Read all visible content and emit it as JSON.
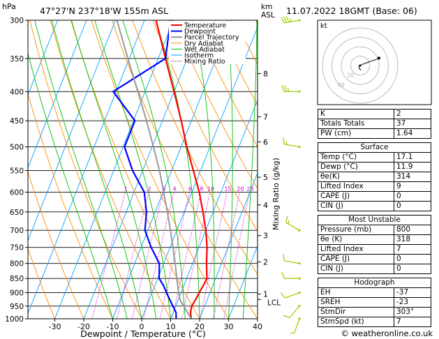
{
  "header": {
    "y_unit": "hPa",
    "location": "47°27'N  237°18'W  155m  ASL",
    "km_unit": "km",
    "asl_label": "ASL",
    "datetime": "11.07.2022  18GMT  (Base: 06)"
  },
  "footer": {
    "copyright": "© weatheronline.co.uk"
  },
  "colors": {
    "temperature": "#ff0000",
    "dewpoint": "#0000ff",
    "parcel": "#999999",
    "dry_adiabat": "#ff8c00",
    "wet_adiabat": "#00c000",
    "isotherm": "#00a0ff",
    "mixing_ratio": "#cc00cc",
    "wind": "#99cc00"
  },
  "chart_data": {
    "type": "line",
    "xlabel": "Dewpoint / Temperature (°C)",
    "ylabel": "hPa",
    "xlim": [
      -35,
      40
    ],
    "ylim": [
      1000,
      300
    ],
    "x_ticks": [
      -30,
      -20,
      -10,
      0,
      10,
      20,
      30,
      40
    ],
    "pressure_ticks": [
      300,
      350,
      400,
      450,
      500,
      550,
      600,
      650,
      700,
      750,
      800,
      850,
      900,
      950,
      1000
    ],
    "km_ticks": [
      {
        "p": 372,
        "label": "8"
      },
      {
        "p": 443,
        "label": "7"
      },
      {
        "p": 490,
        "label": "6"
      },
      {
        "p": 565,
        "label": "5"
      },
      {
        "p": 632,
        "label": "4"
      },
      {
        "p": 715,
        "label": "3"
      },
      {
        "p": 795,
        "label": "2"
      },
      {
        "p": 905,
        "label": "1"
      }
    ],
    "lcl": {
      "label": "LCL",
      "p": 925
    },
    "mixing_ratio_axis_label": "Mixing Ratio (g/kg)",
    "mixing_ratio_labels": [
      "1",
      "2",
      "3",
      "4",
      "6",
      "8",
      "10",
      "15",
      "20",
      "25"
    ],
    "mixing_ratios": [
      1,
      2,
      3,
      4,
      6,
      8,
      10,
      15,
      20,
      25
    ],
    "legend": {
      "placement": "top-left",
      "entries": [
        "Temperature",
        "Dewpoint",
        "Parcel Trajectory",
        "Dry Adiabat",
        "Wet Adiabat",
        "Isotherm",
        "Mixing Ratio"
      ]
    },
    "series": [
      {
        "name": "Temperature",
        "p": [
          1000,
          975,
          950,
          925,
          900,
          875,
          850,
          800,
          750,
          700,
          650,
          600,
          550,
          500,
          450,
          400,
          350,
          300
        ],
        "t": [
          17.1,
          16.0,
          15.5,
          16.0,
          16.3,
          16.7,
          17.0,
          14.8,
          12.8,
          10.0,
          6.5,
          2.5,
          -2.5,
          -8.0,
          -13.5,
          -20.0,
          -27.5,
          -36.0
        ]
      },
      {
        "name": "Dewpoint",
        "p": [
          1000,
          975,
          950,
          925,
          900,
          875,
          850,
          800,
          750,
          700,
          650,
          600,
          550,
          500,
          450,
          400,
          350,
          300
        ],
        "t": [
          11.9,
          11.0,
          9.0,
          7.0,
          5.0,
          3.0,
          0.5,
          -1.5,
          -6.5,
          -11.0,
          -13.0,
          -16.5,
          -23.5,
          -29.5,
          -29.5,
          -41.0,
          -27.5,
          -31.0
        ]
      },
      {
        "name": "Parcel Trajectory",
        "p": [
          1000,
          925,
          900,
          850,
          800,
          750,
          700,
          650,
          600,
          550,
          500,
          450,
          400,
          350,
          300
        ],
        "t": [
          17.1,
          10.5,
          9.2,
          6.6,
          4.0,
          1.0,
          -2.2,
          -5.8,
          -9.8,
          -14.2,
          -19.5,
          -25.5,
          -32.5,
          -40.5,
          -49.5
        ]
      }
    ],
    "wind_barbs": [
      {
        "p": 1000,
        "dir": 200,
        "kt": 5
      },
      {
        "p": 950,
        "dir": 220,
        "kt": 10
      },
      {
        "p": 900,
        "dir": 250,
        "kt": 10
      },
      {
        "p": 850,
        "dir": 270,
        "kt": 10
      },
      {
        "p": 800,
        "dir": 280,
        "kt": 10
      },
      {
        "p": 700,
        "dir": 300,
        "kt": 15
      },
      {
        "p": 500,
        "dir": 280,
        "kt": 15
      },
      {
        "p": 400,
        "dir": 270,
        "kt": 25
      },
      {
        "p": 300,
        "dir": 260,
        "kt": 35
      }
    ],
    "hodograph": {
      "unit": "kt",
      "ring_labels": [
        "20",
        "40"
      ],
      "u": [
        1,
        -1,
        -1,
        2,
        4,
        7,
        12,
        16,
        20
      ],
      "v": [
        -5,
        -3,
        0,
        1,
        2,
        3,
        5,
        6,
        8
      ]
    }
  },
  "indices": {
    "basic": [
      {
        "label": "K",
        "value": "2"
      },
      {
        "label": "Totals Totals",
        "value": "37"
      },
      {
        "label": "PW (cm)",
        "value": "1.64"
      }
    ],
    "surface": {
      "title": "Surface",
      "rows": [
        {
          "label": "Temp (°C)",
          "value": "17.1"
        },
        {
          "label": "Dewp (°C)",
          "value": "11.9"
        },
        {
          "label": "θe(K)",
          "value": "314"
        },
        {
          "label": "Lifted Index",
          "value": "9"
        },
        {
          "label": "CAPE (J)",
          "value": "0"
        },
        {
          "label": "CIN (J)",
          "value": "0"
        }
      ]
    },
    "most_unstable": {
      "title": "Most Unstable",
      "rows": [
        {
          "label": "Pressure (mb)",
          "value": "800"
        },
        {
          "label": "θe (K)",
          "value": "318"
        },
        {
          "label": "Lifted Index",
          "value": "7"
        },
        {
          "label": "CAPE (J)",
          "value": "0"
        },
        {
          "label": "CIN (J)",
          "value": "0"
        }
      ]
    },
    "hodograph": {
      "title": "Hodograph",
      "rows": [
        {
          "label": "EH",
          "value": "-37"
        },
        {
          "label": "SREH",
          "value": "-23"
        },
        {
          "label": "StmDir",
          "value": "303°"
        },
        {
          "label": "StmSpd (kt)",
          "value": "7"
        }
      ]
    }
  }
}
